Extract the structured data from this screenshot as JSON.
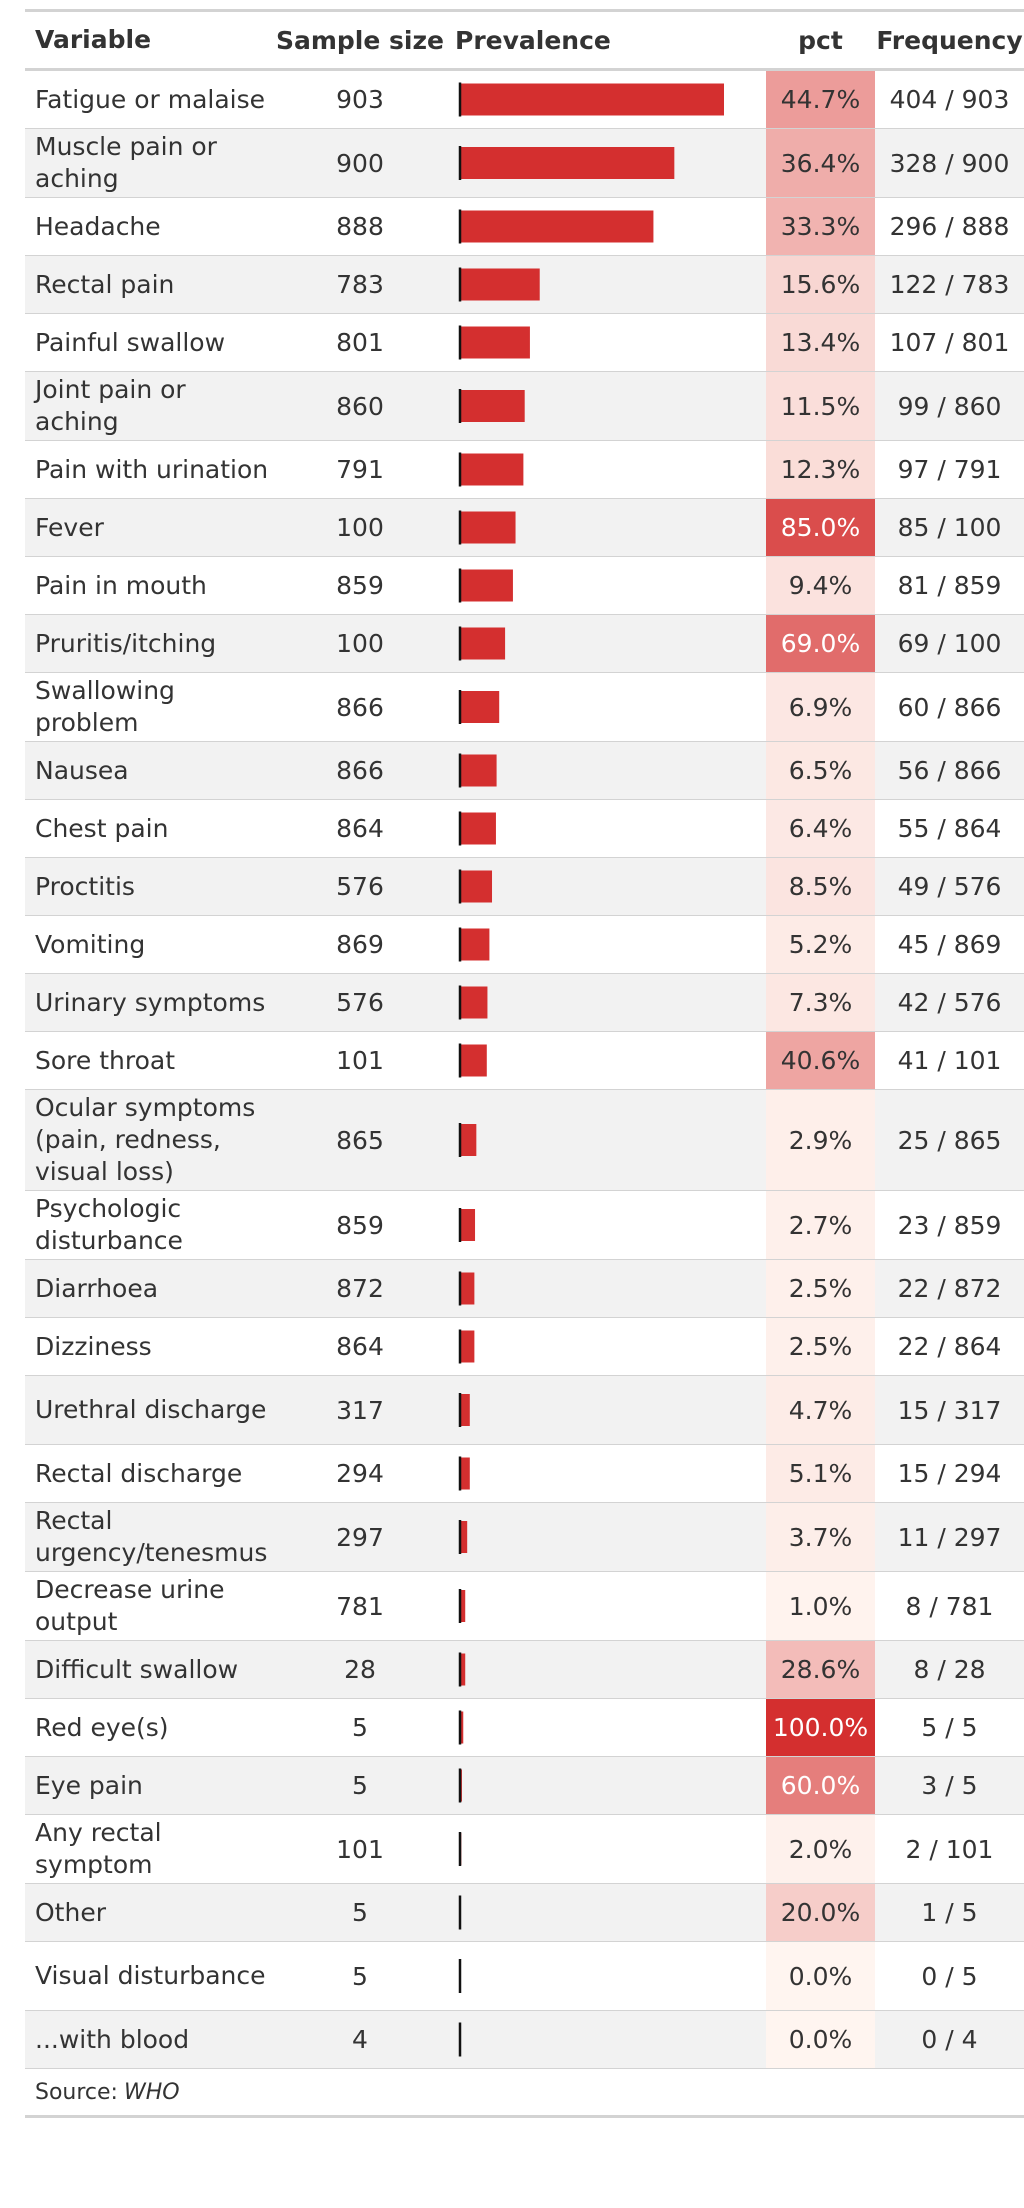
{
  "table": {
    "headers": {
      "variable": "Variable",
      "sample_size": "Sample size",
      "prevalence": "Prevalence",
      "pct": "pct",
      "frequency": "Frequency"
    },
    "source_label": "Source:",
    "source_value": "WHO"
  },
  "colors": {
    "bar": "#d42f2f",
    "axis_line": "#111111",
    "pct_scale_low": "#fff5f0",
    "pct_scale_high": "#d42f2f",
    "stripe": "#f2f2f2",
    "rule": "#d3d3d3"
  },
  "chart_data": {
    "type": "table",
    "bar_column": "Prevalence",
    "bar_max": 404,
    "columns": [
      "Variable",
      "Sample size",
      "Prevalence",
      "pct",
      "Frequency"
    ],
    "rows": [
      {
        "variable": "Fatigue or malaise",
        "n": "903",
        "count": 404,
        "pct": "44.7%",
        "pct_value": 44.7,
        "freq": "404 / 903"
      },
      {
        "variable": "Muscle pain or aching",
        "n": "900",
        "count": 328,
        "pct": "36.4%",
        "pct_value": 36.4,
        "freq": "328 / 900"
      },
      {
        "variable": "Headache",
        "n": "888",
        "count": 296,
        "pct": "33.3%",
        "pct_value": 33.3,
        "freq": "296 / 888"
      },
      {
        "variable": "Rectal pain",
        "n": "783",
        "count": 122,
        "pct": "15.6%",
        "pct_value": 15.6,
        "freq": "122 / 783"
      },
      {
        "variable": "Painful swallow",
        "n": "801",
        "count": 107,
        "pct": "13.4%",
        "pct_value": 13.4,
        "freq": "107 / 801"
      },
      {
        "variable": "Joint pain or aching",
        "n": "860",
        "count": 99,
        "pct": "11.5%",
        "pct_value": 11.5,
        "freq": "99 / 860"
      },
      {
        "variable": "Pain with urination",
        "n": "791",
        "count": 97,
        "pct": "12.3%",
        "pct_value": 12.3,
        "freq": "97 / 791"
      },
      {
        "variable": "Fever",
        "n": "100",
        "count": 85,
        "pct": "85.0%",
        "pct_value": 85.0,
        "freq": "85 / 100"
      },
      {
        "variable": "Pain in mouth",
        "n": "859",
        "count": 81,
        "pct": "9.4%",
        "pct_value": 9.4,
        "freq": "81 / 859"
      },
      {
        "variable": "Pruritis/itching",
        "n": "100",
        "count": 69,
        "pct": "69.0%",
        "pct_value": 69.0,
        "freq": "69 / 100"
      },
      {
        "variable": "Swallowing problem",
        "n": "866",
        "count": 60,
        "pct": "6.9%",
        "pct_value": 6.9,
        "freq": "60 / 866"
      },
      {
        "variable": "Nausea",
        "n": "866",
        "count": 56,
        "pct": "6.5%",
        "pct_value": 6.5,
        "freq": "56 / 866"
      },
      {
        "variable": "Chest pain",
        "n": "864",
        "count": 55,
        "pct": "6.4%",
        "pct_value": 6.4,
        "freq": "55 / 864"
      },
      {
        "variable": "Proctitis",
        "n": "576",
        "count": 49,
        "pct": "8.5%",
        "pct_value": 8.5,
        "freq": "49 / 576"
      },
      {
        "variable": "Vomiting",
        "n": "869",
        "count": 45,
        "pct": "5.2%",
        "pct_value": 5.2,
        "freq": "45 / 869"
      },
      {
        "variable": "Urinary symptoms",
        "n": "576",
        "count": 42,
        "pct": "7.3%",
        "pct_value": 7.3,
        "freq": "42 / 576"
      },
      {
        "variable": "Sore throat",
        "n": "101",
        "count": 41,
        "pct": "40.6%",
        "pct_value": 40.6,
        "freq": "41 / 101"
      },
      {
        "variable": "Ocular symptoms (pain, redness, visual loss)",
        "n": "865",
        "count": 25,
        "pct": "2.9%",
        "pct_value": 2.9,
        "freq": "25 / 865"
      },
      {
        "variable": "Psychologic disturbance",
        "n": "859",
        "count": 23,
        "pct": "2.7%",
        "pct_value": 2.7,
        "freq": "23 / 859"
      },
      {
        "variable": "Diarrhoea",
        "n": "872",
        "count": 22,
        "pct": "2.5%",
        "pct_value": 2.5,
        "freq": "22 / 872"
      },
      {
        "variable": "Dizziness",
        "n": "864",
        "count": 22,
        "pct": "2.5%",
        "pct_value": 2.5,
        "freq": "22 / 864"
      },
      {
        "variable": "Urethral discharge",
        "n": "317",
        "count": 15,
        "pct": "4.7%",
        "pct_value": 4.7,
        "freq": "15 / 317"
      },
      {
        "variable": "Rectal discharge",
        "n": "294",
        "count": 15,
        "pct": "5.1%",
        "pct_value": 5.1,
        "freq": "15 / 294"
      },
      {
        "variable": "Rectal urgency/tenesmus",
        "n": "297",
        "count": 11,
        "pct": "3.7%",
        "pct_value": 3.7,
        "freq": "11 / 297"
      },
      {
        "variable": "Decrease urine output",
        "n": "781",
        "count": 8,
        "pct": "1.0%",
        "pct_value": 1.0,
        "freq": "8 / 781"
      },
      {
        "variable": "Difficult swallow",
        "n": "28",
        "count": 8,
        "pct": "28.6%",
        "pct_value": 28.6,
        "freq": "8 / 28"
      },
      {
        "variable": "Red eye(s)",
        "n": "5",
        "count": 5,
        "pct": "100.0%",
        "pct_value": 100.0,
        "freq": "5 / 5"
      },
      {
        "variable": "Eye pain",
        "n": "5",
        "count": 3,
        "pct": "60.0%",
        "pct_value": 60.0,
        "freq": "3 / 5"
      },
      {
        "variable": "Any rectal symptom",
        "n": "101",
        "count": 2,
        "pct": "2.0%",
        "pct_value": 2.0,
        "freq": "2 / 101"
      },
      {
        "variable": "Other",
        "n": "5",
        "count": 1,
        "pct": "20.0%",
        "pct_value": 20.0,
        "freq": "1 / 5"
      },
      {
        "variable": "Visual disturbance",
        "n": "5",
        "count": 0,
        "pct": "0.0%",
        "pct_value": 0.0,
        "freq": "0 / 5"
      },
      {
        "variable": "...with blood",
        "n": "4",
        "count": 0,
        "pct": "0.0%",
        "pct_value": 0.0,
        "freq": "0 / 4"
      }
    ]
  }
}
